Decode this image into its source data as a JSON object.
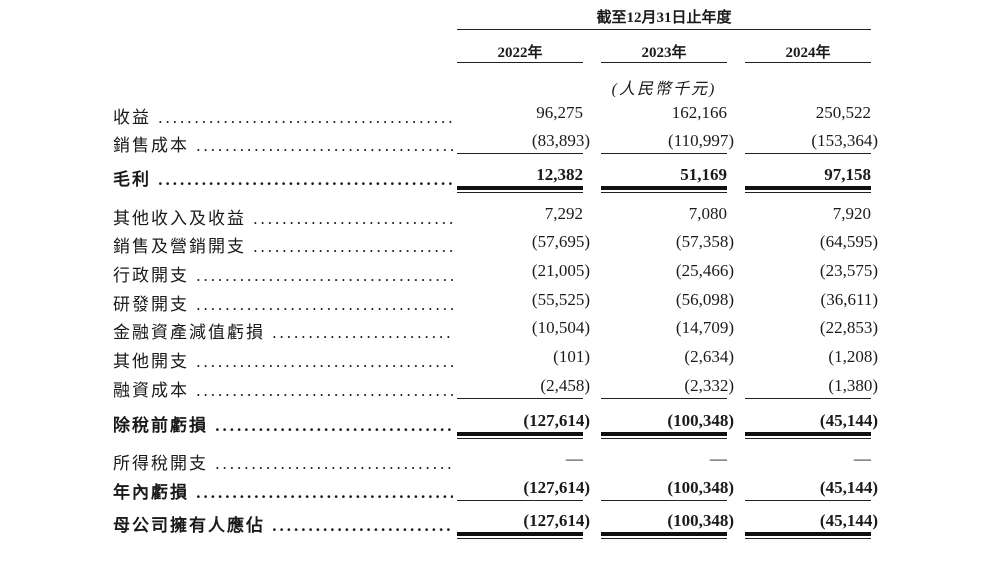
{
  "header": {
    "period": "截至12月31日止年度",
    "years": [
      "2022年",
      "2023年",
      "2024年"
    ],
    "unit": "(人民幣千元)"
  },
  "rows": [
    {
      "label": "收益",
      "values": [
        "96,275",
        "162,166",
        "250,522"
      ],
      "bold": false,
      "rule": "none"
    },
    {
      "label": "銷售成本",
      "values": [
        "(83,893)",
        "(110,997)",
        "(153,364)"
      ],
      "bold": false,
      "rule": "single"
    },
    {
      "label": "毛利",
      "values": [
        "12,382",
        "51,169",
        "97,158"
      ],
      "bold": true,
      "rule": "double"
    },
    {
      "label": "其他收入及收益",
      "values": [
        "7,292",
        "7,080",
        "7,920"
      ],
      "bold": false,
      "rule": "none"
    },
    {
      "label": "銷售及營銷開支",
      "values": [
        "(57,695)",
        "(57,358)",
        "(64,595)"
      ],
      "bold": false,
      "rule": "none"
    },
    {
      "label": "行政開支",
      "values": [
        "(21,005)",
        "(25,466)",
        "(23,575)"
      ],
      "bold": false,
      "rule": "none"
    },
    {
      "label": "研發開支",
      "values": [
        "(55,525)",
        "(56,098)",
        "(36,611)"
      ],
      "bold": false,
      "rule": "none"
    },
    {
      "label": "金融資產減值虧損",
      "values": [
        "(10,504)",
        "(14,709)",
        "(22,853)"
      ],
      "bold": false,
      "rule": "none"
    },
    {
      "label": "其他開支",
      "values": [
        "(101)",
        "(2,634)",
        "(1,208)"
      ],
      "bold": false,
      "rule": "none"
    },
    {
      "label": "融資成本",
      "values": [
        "(2,458)",
        "(2,332)",
        "(1,380)"
      ],
      "bold": false,
      "rule": "single"
    },
    {
      "label": "除稅前虧損",
      "values": [
        "(127,614)",
        "(100,348)",
        "(45,144)"
      ],
      "bold": true,
      "rule": "double"
    },
    {
      "label": "所得稅開支",
      "values": [
        "—",
        "—",
        "—"
      ],
      "bold": false,
      "rule": "none"
    },
    {
      "label": "年內虧損",
      "values": [
        "(127,614)",
        "(100,348)",
        "(45,144)"
      ],
      "bold": true,
      "rule": "single"
    },
    {
      "label": "母公司擁有人應佔",
      "values": [
        "(127,614)",
        "(100,348)",
        "(45,144)"
      ],
      "bold": true,
      "rule": "double"
    }
  ]
}
